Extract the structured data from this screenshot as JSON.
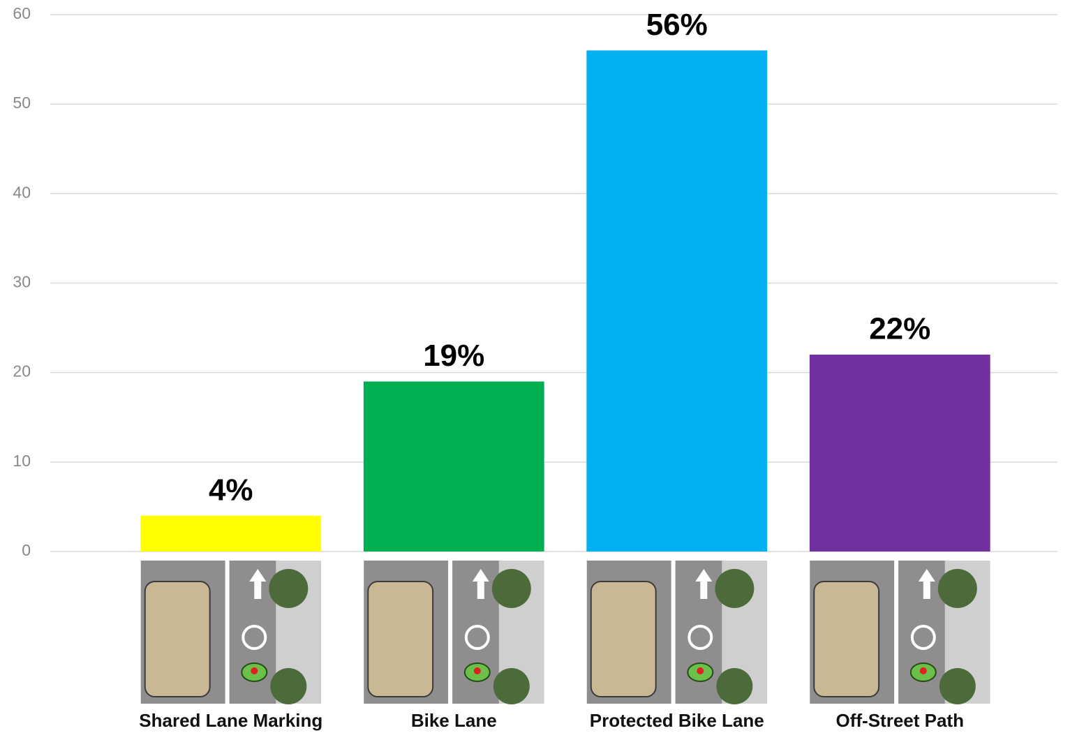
{
  "chart_data": {
    "type": "bar",
    "categories": [
      "Shared Lane Marking",
      "Bike Lane",
      "Protected Bike Lane",
      "Off-Street Path"
    ],
    "values": [
      4,
      19,
      56,
      22
    ],
    "value_labels": [
      "4%",
      "19%",
      "56%",
      "22%"
    ],
    "colors": [
      "#ffff00",
      "#00b050",
      "#00b0f0",
      "#7030a0"
    ],
    "ylim": [
      0,
      60
    ],
    "yticks": [
      0,
      10,
      20,
      30,
      40,
      50,
      60
    ],
    "grid": true
  }
}
